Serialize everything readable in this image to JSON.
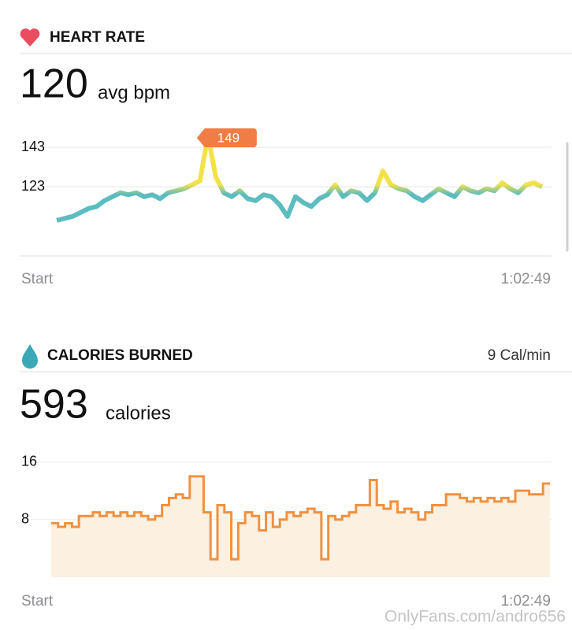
{
  "chart_data": [
    {
      "type": "line",
      "title": "HEART RATE",
      "summary_value": "120",
      "summary_unit": "avg bpm",
      "values": [
        106,
        107,
        108,
        110,
        112,
        113,
        116,
        118,
        120,
        119,
        120,
        118,
        119,
        117,
        120,
        121,
        122,
        124,
        126,
        149,
        128,
        120,
        118,
        121,
        117,
        116,
        119,
        118,
        114,
        108,
        118,
        115,
        113,
        117,
        119,
        124,
        118,
        121,
        120,
        116,
        120,
        131,
        124,
        122,
        121,
        118,
        116,
        119,
        122,
        120,
        118,
        123,
        121,
        120,
        122,
        121,
        125,
        122,
        120,
        124,
        125,
        123
      ],
      "colors": [
        "#f2e24a",
        "#5cbcbf"
      ],
      "ylim": [
        88,
        153
      ],
      "yticks": [
        143,
        123
      ],
      "x_start_label": "Start",
      "x_end_label": "1:02:49"
    },
    {
      "type": "step",
      "title": "CALORIES BURNED",
      "rate": "9 Cal/min",
      "summary_value": "593",
      "summary_unit": "calories",
      "values": [
        7.5,
        7,
        7.5,
        7,
        8.5,
        8.5,
        9,
        8.5,
        9,
        8.5,
        9,
        8.5,
        9,
        8.5,
        8,
        8.5,
        10,
        11,
        11.5,
        11,
        14,
        14,
        9,
        2.5,
        10,
        9,
        2.5,
        7.5,
        9,
        8.5,
        6.5,
        9,
        7,
        8,
        9,
        8.5,
        9,
        9.5,
        9,
        2.5,
        8.5,
        8,
        8.5,
        9,
        10,
        10,
        13.5,
        10,
        9.5,
        10.5,
        9,
        9.5,
        9,
        8,
        9,
        10,
        10,
        11.5,
        11.5,
        11,
        10.5,
        11,
        10.5,
        11,
        10.5,
        11,
        10.5,
        12,
        12,
        11.5,
        11.5,
        13
      ],
      "color": "#ef9140",
      "fill": "#fcf0e1",
      "ylim": [
        0,
        16.5
      ],
      "yticks": [
        16,
        8
      ],
      "x_start_label": "Start",
      "x_end_label": "1:02:49"
    }
  ],
  "watermark": "OnlyFans.com/andro656"
}
